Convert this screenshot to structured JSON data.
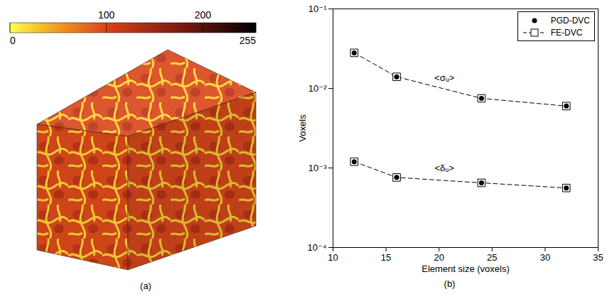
{
  "chart_data": {
    "type": "line",
    "panel_label": "(b)",
    "x_label": "Element size (voxels)",
    "y_label": "Voxels",
    "log": "y",
    "grid": false,
    "legend": "top-right",
    "xlim": [
      10,
      35
    ],
    "xticks": [
      10,
      15,
      20,
      25,
      30,
      35
    ],
    "ylim": [
      0.0001,
      0.1
    ],
    "yticks": [
      {
        "value": 0.0001,
        "label": "10⁻⁴"
      },
      {
        "value": 0.001,
        "label": "10⁻³"
      },
      {
        "value": 0.01,
        "label": "10⁻²"
      },
      {
        "value": 0.1,
        "label": "10⁻¹"
      }
    ],
    "x": [
      12,
      16,
      24,
      32
    ],
    "series": [
      {
        "name": "FE-DVC",
        "color": "#000000",
        "marker": "square",
        "line_style": "dashed",
        "values": [
          0.028,
          0.014,
          0.0075,
          0.006
        ]
      },
      {
        "name": "FE-DVC",
        "color": "#000000",
        "marker": "square",
        "line_style": "dashed",
        "values": [
          0.0012,
          0.00076,
          0.00065,
          0.00056
        ]
      },
      {
        "name": "PGD-DVC",
        "color": "#000000",
        "marker": "dot",
        "line_style": "none",
        "values": [
          0.028,
          0.014,
          0.0075,
          0.006
        ]
      },
      {
        "name": "PGD-DVC",
        "color": "#000000",
        "marker": "dot",
        "line_style": "none",
        "values": [
          0.0012,
          0.00076,
          0.00065,
          0.00056
        ]
      }
    ],
    "annotations": [
      {
        "text": "<σᵤ>",
        "x": 20.5,
        "y": 0.0135
      },
      {
        "text": "<δᵤ>",
        "x": 20.5,
        "y": 0.001
      }
    ]
  },
  "image_panel": {
    "panel_label": "(a)",
    "colorbar": {
      "range": [
        0,
        255
      ],
      "ticks": [
        0,
        100,
        200,
        255
      ]
    }
  }
}
